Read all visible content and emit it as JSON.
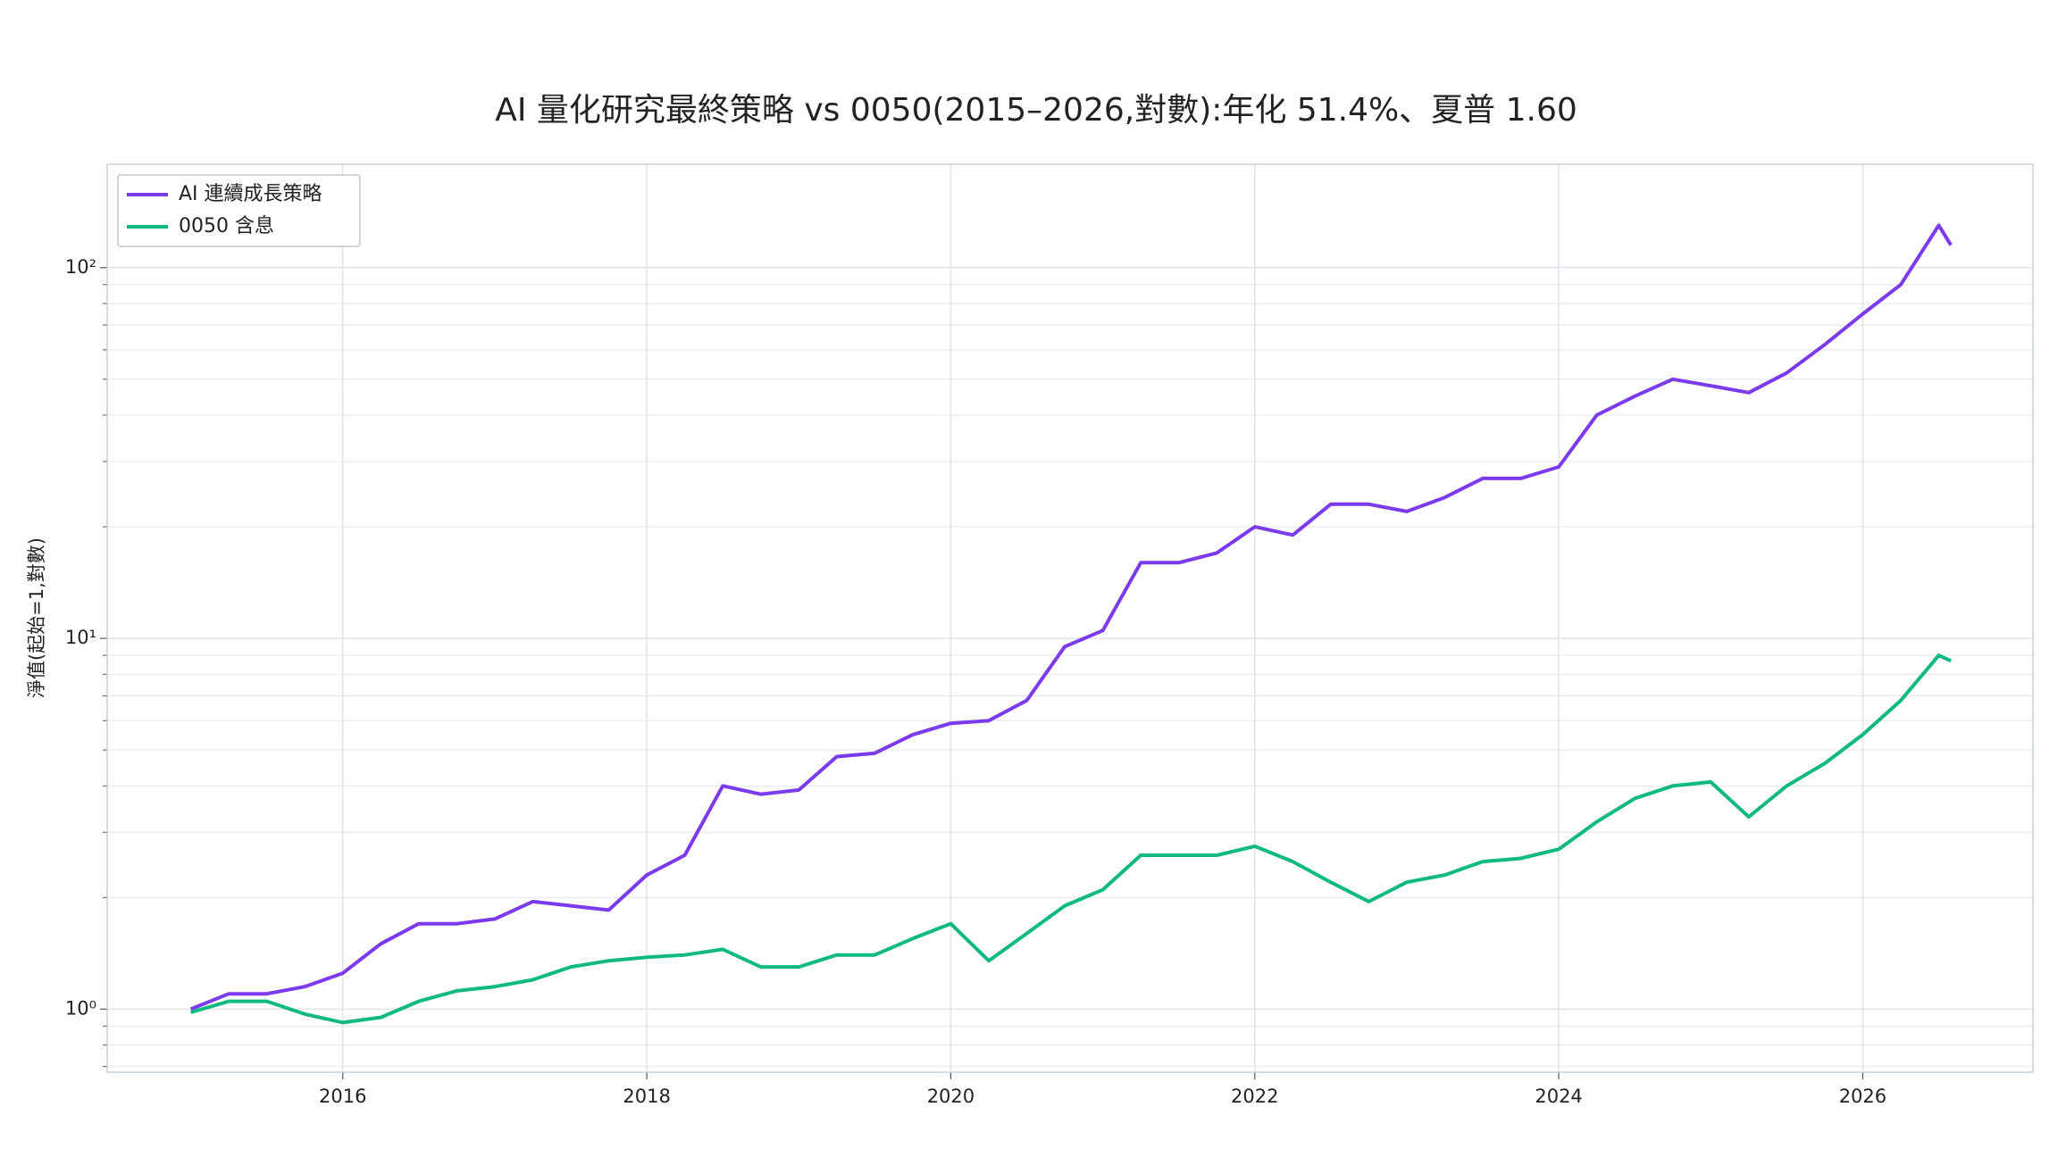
{
  "chart_data": {
    "type": "line",
    "title": "AI 量化研究最終策略 vs 0050(2015–2026,對數):年化 51.4%、夏普 1.60",
    "y_label": "淨值(起始=1,對數)",
    "yscale": "log",
    "grid": true,
    "legend": "upper left",
    "x": [
      2015.0,
      2015.25,
      2015.5,
      2015.75,
      2016.0,
      2016.25,
      2016.5,
      2016.75,
      2017.0,
      2017.25,
      2017.5,
      2017.75,
      2018.0,
      2018.25,
      2018.5,
      2018.75,
      2019.0,
      2019.25,
      2019.5,
      2019.75,
      2020.0,
      2020.25,
      2020.5,
      2020.75,
      2021.0,
      2021.25,
      2021.5,
      2021.75,
      2022.0,
      2022.25,
      2022.5,
      2022.75,
      2023.0,
      2023.25,
      2023.5,
      2023.75,
      2024.0,
      2024.25,
      2024.5,
      2024.75,
      2025.0,
      2025.25,
      2025.5,
      2025.75,
      2026.0,
      2026.25,
      2026.5,
      2026.58
    ],
    "series": [
      {
        "name": "AI 連續成長策略",
        "color": "#7c3aed",
        "values": [
          1.0,
          1.1,
          1.1,
          1.15,
          1.25,
          1.5,
          1.7,
          1.7,
          1.75,
          1.95,
          1.9,
          1.85,
          2.3,
          2.6,
          4.0,
          3.8,
          3.9,
          4.8,
          4.9,
          5.5,
          5.9,
          6.0,
          6.8,
          9.5,
          10.5,
          16,
          16,
          17,
          20,
          19,
          23,
          23,
          22,
          24,
          27,
          27,
          29,
          40,
          45,
          50,
          48,
          46,
          52,
          62,
          75,
          90,
          130,
          115
        ]
      },
      {
        "name": "0050 含息",
        "color": "#10b981",
        "values": [
          0.98,
          1.05,
          1.05,
          0.97,
          0.92,
          0.95,
          1.05,
          1.12,
          1.15,
          1.2,
          1.3,
          1.35,
          1.38,
          1.4,
          1.45,
          1.3,
          1.3,
          1.4,
          1.4,
          1.55,
          1.7,
          1.35,
          1.6,
          1.9,
          2.1,
          2.6,
          2.6,
          2.6,
          2.75,
          2.5,
          2.2,
          1.95,
          2.2,
          2.3,
          2.5,
          2.55,
          2.7,
          3.2,
          3.7,
          4.0,
          4.1,
          3.3,
          4.0,
          4.6,
          5.5,
          6.8,
          9.0,
          8.7
        ]
      }
    ],
    "xlim": [
      2014.45,
      2027.12
    ],
    "xticks": [
      2016,
      2018,
      2020,
      2022,
      2024,
      2026
    ],
    "ylim": [
      0.676,
      190
    ],
    "yticks": [
      {
        "value": 1,
        "label": "10⁰"
      },
      {
        "value": 10,
        "label": "10¹"
      },
      {
        "value": 100,
        "label": "10²"
      }
    ],
    "yticks_minor": [
      0.7,
      0.8,
      0.9,
      2,
      3,
      4,
      5,
      6,
      7,
      8,
      9,
      20,
      30,
      40,
      50,
      60,
      70,
      80,
      90
    ]
  }
}
